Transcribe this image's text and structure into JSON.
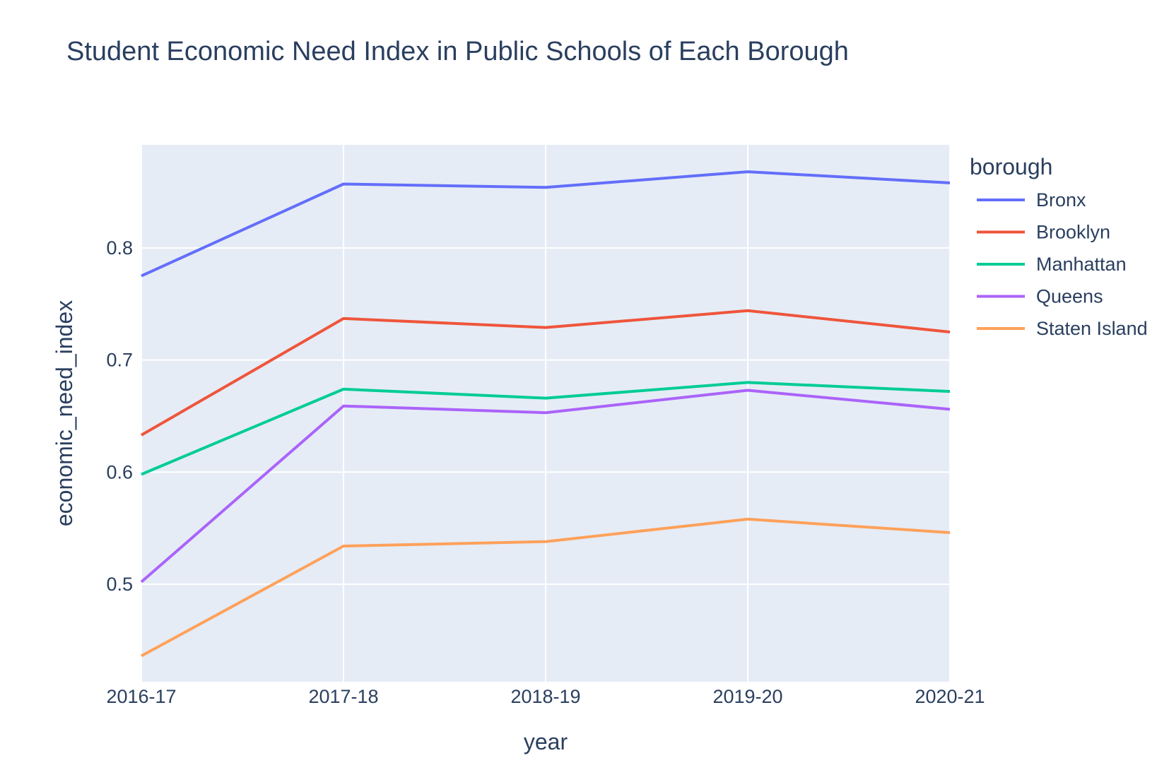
{
  "chart_data": {
    "type": "line",
    "title": "Student Economic Need Index in Public Schools of Each Borough",
    "xlabel": "year",
    "ylabel": "economic_need_index",
    "categories": [
      "2016-17",
      "2017-18",
      "2018-19",
      "2019-20",
      "2020-21"
    ],
    "ylim": [
      0.413,
      0.892
    ],
    "yticks": [
      0.5,
      0.6,
      0.7,
      0.8
    ],
    "ytick_labels": [
      "0.5",
      "0.6",
      "0.7",
      "0.8"
    ],
    "grid": true,
    "legend": {
      "title": "borough",
      "placement": "right"
    },
    "background_color": "#e5ecf6",
    "grid_color": "#ffffff",
    "series": [
      {
        "name": "Bronx",
        "color": "#636efa",
        "values": [
          0.775,
          0.857,
          0.854,
          0.868,
          0.858
        ]
      },
      {
        "name": "Brooklyn",
        "color": "#ef553b",
        "values": [
          0.633,
          0.737,
          0.729,
          0.744,
          0.725
        ]
      },
      {
        "name": "Manhattan",
        "color": "#00cc96",
        "values": [
          0.598,
          0.674,
          0.666,
          0.68,
          0.672
        ]
      },
      {
        "name": "Queens",
        "color": "#ab63fa",
        "values": [
          0.502,
          0.659,
          0.653,
          0.673,
          0.656
        ]
      },
      {
        "name": "Staten Island",
        "color": "#ffa15a",
        "values": [
          0.436,
          0.534,
          0.538,
          0.558,
          0.546
        ]
      }
    ]
  }
}
